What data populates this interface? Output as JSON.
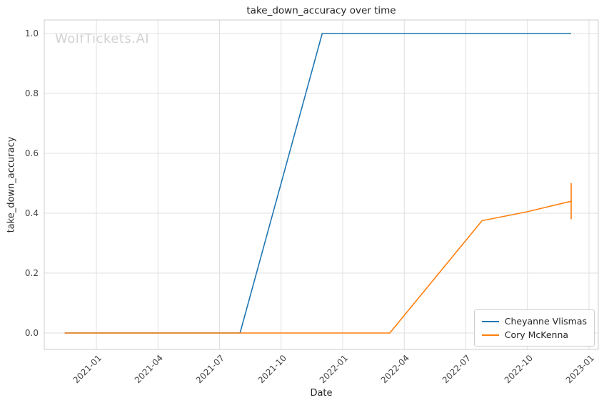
{
  "figure": {
    "title": "take_down_accuracy over time",
    "xlabel": "Date",
    "ylabel": "take_down_accuracy",
    "watermark": "WolfTickets.AI"
  },
  "style": {
    "grid_color": "#e0e0e0",
    "spine_color": "#cccccc",
    "background": "#ffffff"
  },
  "chart_data": {
    "type": "line",
    "title": "take_down_accuracy over time",
    "xlabel": "Date",
    "ylabel": "take_down_accuracy",
    "grid": true,
    "legend_position": "lower right",
    "x_ticks": [
      "2021-01",
      "2021-04",
      "2021-07",
      "2021-10",
      "2022-01",
      "2022-04",
      "2022-07",
      "2022-10",
      "2023-01"
    ],
    "y_ticks": [
      0.0,
      0.2,
      0.4,
      0.6,
      0.8,
      1.0
    ],
    "xlim": [
      "2020-10-14",
      "2023-01-14"
    ],
    "ylim": [
      -0.05,
      1.05
    ],
    "series": [
      {
        "name": "Cheyanne Vlismas",
        "color": "#1f77b4",
        "points": [
          [
            "2020-11-15",
            0.0
          ],
          [
            "2021-08-01",
            0.0
          ],
          [
            "2021-12-01",
            1.0
          ],
          [
            "2022-12-05",
            1.0
          ]
        ]
      },
      {
        "name": "Cory McKenna",
        "color": "#ff7f0e",
        "points": [
          [
            "2020-11-15",
            0.0
          ],
          [
            "2022-03-10",
            0.0
          ],
          [
            "2022-07-25",
            0.375
          ],
          [
            "2022-10-01",
            0.405
          ],
          [
            "2022-12-05",
            0.44
          ]
        ],
        "end_tick": {
          "x": "2022-12-05",
          "low": 0.38,
          "high": 0.5
        }
      }
    ]
  }
}
